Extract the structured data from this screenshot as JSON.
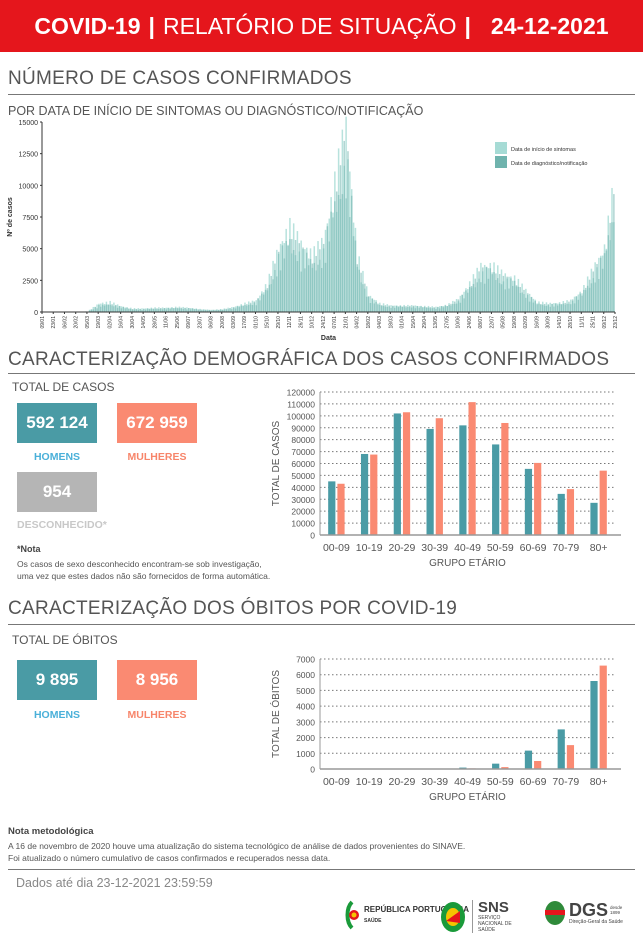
{
  "header": {
    "title": "COVID-19",
    "subtitle": "RELATÓRIO DE SITUAÇÃO",
    "date": "24-12-2021",
    "sep": "|"
  },
  "colors": {
    "header": "#e5161c",
    "men": "#4a9ba5",
    "women": "#fa8a72",
    "unknown": "#b5b5b5",
    "men_label": "#4ab0d9",
    "women_label": "#f7856a",
    "onset": "#a6dbd5",
    "notif": "#6fb3ad"
  },
  "cases_section": {
    "title": "NÚMERO DE CASOS CONFIRMADOS",
    "subtitle": "POR DATA DE INÍCIO DE SINTOMAS OU DIAGNÓSTICO/NOTIFICAÇÃO"
  },
  "demo_section": {
    "title": "CARACTERIZAÇÃO DEMOGRÁFICA DOS CASOS CONFIRMADOS",
    "total_label": "TOTAL DE CASOS",
    "men_value": "592 124",
    "men_label": "HOMENS",
    "women_value": "672 959",
    "women_label": "MULHERES",
    "unknown_value": "954",
    "unknown_label": "DESCONHECIDO*",
    "note_title": "*Nota",
    "note_line1": "Os casos de sexo desconhecido encontram-se sob investigação,",
    "note_line2": "uma vez que estes dados não são fornecidos de forma automática."
  },
  "deaths_section": {
    "title": "CARACTERIZAÇÃO DOS ÓBITOS POR COVID-19",
    "total_label": "TOTAL DE ÓBITOS",
    "men_value": "9 895",
    "men_label": "HOMENS",
    "women_value": "8 956",
    "women_label": "MULHERES"
  },
  "footer": {
    "note_title": "Nota metodológica",
    "note_line1": "A 16 de novembro de 2020 houve uma atualização do sistema tecnológico de análise de dados provenientes do SINAVE.",
    "note_line2": "Foi atualizado o número cumulativo de casos confirmados e recuperados nessa data.",
    "data_until": "Dados até dia 23-12-2021 23:59:59",
    "logos": [
      {
        "name": "REPÚBLICA PORTUGUESA",
        "sub": "SAÚDE"
      },
      {
        "name": "SNS",
        "sub": "SERVIÇO NACIONAL DE SAÚDE"
      },
      {
        "name": "DGS",
        "sub": "Direção-Geral da Saúde",
        "since": "desde 1899"
      }
    ]
  },
  "chart_data": [
    {
      "type": "bar",
      "xlabel": "Data",
      "ylabel": "Nº de casos",
      "ylim": [
        0,
        15000
      ],
      "yticks": [
        0,
        2500,
        5000,
        7500,
        10000,
        12500,
        15000
      ],
      "legend_position": "top-right",
      "categories": [
        "09/01",
        "23/01",
        "06/02",
        "20/02",
        "05/03",
        "19/03",
        "02/04",
        "16/04",
        "30/04",
        "14/05",
        "28/05",
        "11/06",
        "25/06",
        "09/07",
        "23/07",
        "06/08",
        "20/08",
        "03/09",
        "17/09",
        "01/10",
        "15/10",
        "29/10",
        "12/11",
        "26/11",
        "10/12",
        "24/12",
        "07/01",
        "21/01",
        "04/02",
        "18/02",
        "04/03",
        "18/03",
        "01/04",
        "15/04",
        "29/04",
        "13/05",
        "27/05",
        "10/06",
        "24/06",
        "08/07",
        "22/07",
        "05/08",
        "19/08",
        "02/09",
        "16/09",
        "30/09",
        "14/10",
        "28/10",
        "11/11",
        "25/11",
        "09/12",
        "23/12"
      ],
      "series": [
        {
          "name": "Data de início de sintomas",
          "values": [
            0,
            0,
            0,
            0,
            50,
            600,
            700,
            400,
            250,
            250,
            300,
            300,
            350,
            300,
            200,
            150,
            200,
            350,
            600,
            800,
            2000,
            4500,
            6000,
            4800,
            4000,
            5000,
            9000,
            13000,
            4000,
            1200,
            600,
            450,
            450,
            450,
            400,
            350,
            500,
            900,
            2000,
            3200,
            3300,
            2600,
            2400,
            1500,
            700,
            600,
            650,
            800,
            1500,
            3000,
            4500,
            9500
          ]
        },
        {
          "name": "Data de diagnóstico/notificação",
          "values": [
            0,
            0,
            0,
            0,
            30,
            450,
            550,
            350,
            200,
            200,
            250,
            250,
            300,
            250,
            180,
            130,
            170,
            300,
            500,
            700,
            1700,
            3800,
            5200,
            4200,
            3500,
            4300,
            7800,
            11500,
            3500,
            1000,
            500,
            400,
            400,
            400,
            350,
            300,
            450,
            800,
            1700,
            2800,
            2900,
            2300,
            2100,
            1300,
            600,
            500,
            550,
            700,
            1300,
            2600,
            3900,
            8500
          ]
        }
      ]
    },
    {
      "type": "bar",
      "xlabel": "GRUPO ETÁRIO",
      "ylabel": "TOTAL DE CASOS",
      "ylim": [
        0,
        120000
      ],
      "yticks": [
        0,
        10000,
        20000,
        30000,
        40000,
        50000,
        60000,
        70000,
        80000,
        90000,
        100000,
        110000,
        120000
      ],
      "grid": true,
      "categories": [
        "00-09",
        "10-19",
        "20-29",
        "30-39",
        "40-49",
        "50-59",
        "60-69",
        "70-79",
        "80+"
      ],
      "series": [
        {
          "values": [
            45000,
            68000,
            102000,
            89000,
            92000,
            76000,
            55500,
            34500,
            27000
          ]
        },
        {
          "values": [
            43000,
            67500,
            103000,
            98000,
            111500,
            94000,
            60500,
            38500,
            54000
          ]
        }
      ]
    },
    {
      "type": "bar",
      "xlabel": "GRUPO ETÁRIO",
      "ylabel": "TOTAL DE ÓBITOS",
      "ylim": [
        0,
        7000
      ],
      "yticks": [
        0,
        1000,
        2000,
        3000,
        4000,
        5000,
        6000,
        7000
      ],
      "grid": true,
      "categories": [
        "00-09",
        "10-19",
        "20-29",
        "30-39",
        "40-49",
        "50-59",
        "60-69",
        "70-79",
        "80+"
      ],
      "series": [
        {
          "values": [
            0,
            0,
            0,
            10,
            90,
            340,
            1170,
            2520,
            5600
          ]
        },
        {
          "values": [
            0,
            0,
            0,
            5,
            40,
            120,
            510,
            1520,
            6580
          ]
        }
      ]
    }
  ]
}
